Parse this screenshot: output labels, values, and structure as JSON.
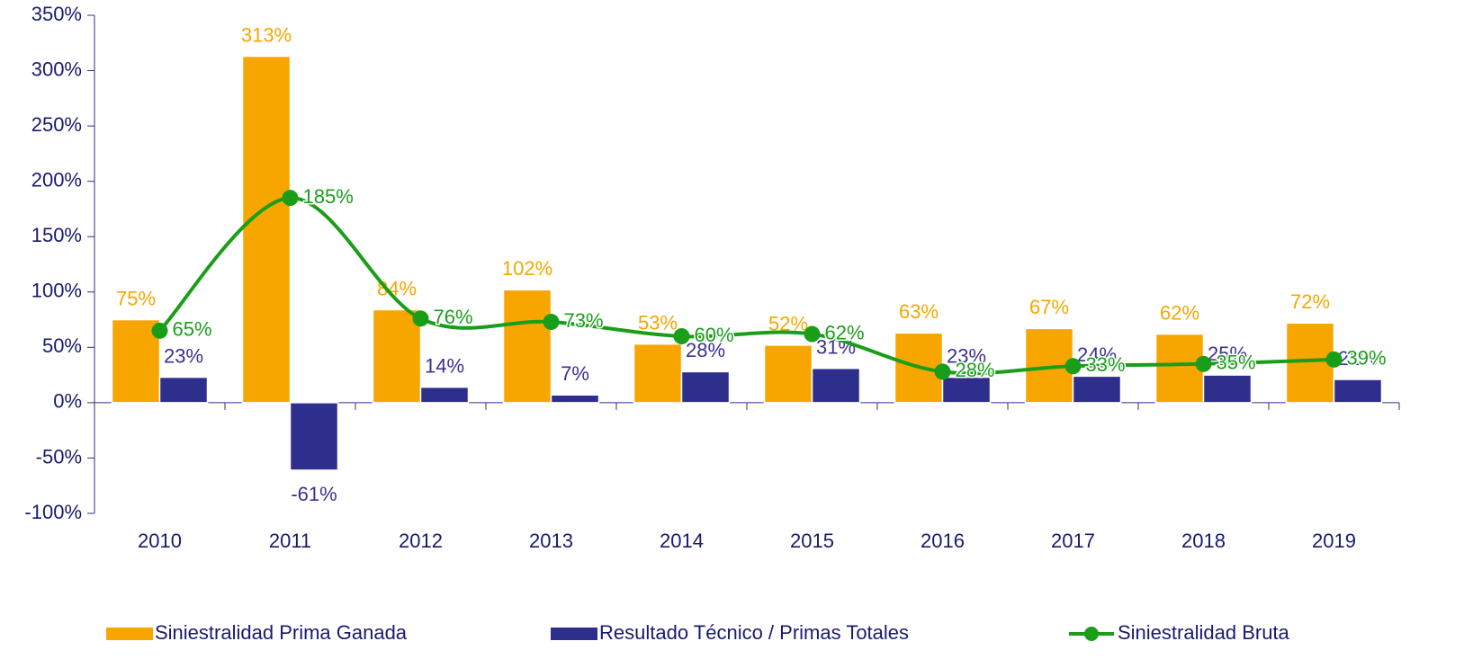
{
  "chart_data": {
    "type": "bar",
    "categories": [
      "2010",
      "2011",
      "2012",
      "2013",
      "2014",
      "2015",
      "2016",
      "2017",
      "2018",
      "2019"
    ],
    "series": [
      {
        "name": "Siniestralidad Prima Ganada",
        "type": "bar",
        "color": "#f7a600",
        "values": [
          75,
          313,
          84,
          102,
          53,
          52,
          63,
          67,
          62,
          72
        ],
        "value_labels": [
          "75%",
          "313%",
          "84%",
          "102%",
          "53%",
          "52%",
          "63%",
          "67%",
          "62%",
          "72%"
        ]
      },
      {
        "name": "Resultado Técnico / Primas Totales",
        "type": "bar",
        "color": "#2e2e8c",
        "values": [
          23,
          -61,
          14,
          7,
          28,
          31,
          23,
          24,
          25,
          21
        ],
        "value_labels": [
          "23%",
          "-61%",
          "14%",
          "7%",
          "28%",
          "31%",
          "23%",
          "24%",
          "25%",
          "21%"
        ]
      },
      {
        "name": "Siniestralidad Bruta",
        "type": "line",
        "color": "#1a9e1a",
        "values": [
          65,
          185,
          76,
          73,
          60,
          62,
          28,
          33,
          35,
          39
        ],
        "value_labels": [
          "65%",
          "185%",
          "76%",
          "73%",
          "60%",
          "62%",
          "28%",
          "33%",
          "35%",
          "39%"
        ]
      }
    ],
    "ylim": [
      -100,
      350
    ],
    "yticks": [
      {
        "value": -100,
        "label": "-100%"
      },
      {
        "value": -50,
        "label": "-50%"
      },
      {
        "value": 0,
        "label": "0%"
      },
      {
        "value": 50,
        "label": "50%"
      },
      {
        "value": 100,
        "label": "100%"
      },
      {
        "value": 150,
        "label": "150%"
      },
      {
        "value": 200,
        "label": "200%"
      },
      {
        "value": 250,
        "label": "250%"
      },
      {
        "value": 300,
        "label": "300%"
      },
      {
        "value": 350,
        "label": "350%"
      }
    ],
    "grid": false,
    "legend": "bottom"
  }
}
